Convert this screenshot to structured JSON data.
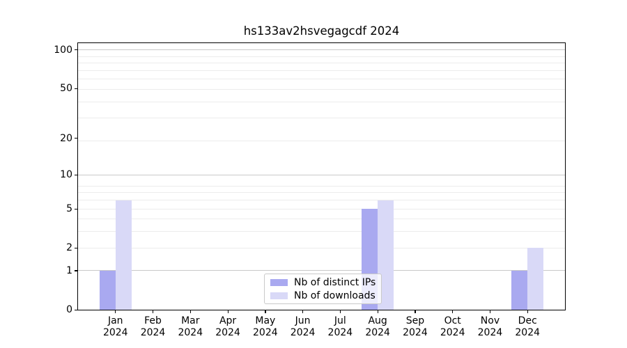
{
  "chart_data": {
    "type": "bar",
    "title": "hs133av2hsvegagcdf 2024",
    "categories": [
      "Jan",
      "Feb",
      "Mar",
      "Apr",
      "May",
      "Jun",
      "Jul",
      "Aug",
      "Sep",
      "Oct",
      "Nov",
      "Dec"
    ],
    "year_label": "2024",
    "series": [
      {
        "name": "Nb of distinct IPs",
        "color": "#a9a9f0",
        "values": [
          1,
          0,
          0,
          0,
          0,
          0,
          0,
          5,
          0,
          0,
          0,
          1
        ]
      },
      {
        "name": "Nb of downloads",
        "color": "#d9d9f7",
        "values": [
          6,
          0,
          0,
          0,
          0,
          0,
          0,
          6,
          0,
          0,
          0,
          2
        ]
      }
    ],
    "yscale": "log1p",
    "ylim": [
      0,
      113
    ],
    "yticks": [
      {
        "value": 100,
        "label": "100"
      },
      {
        "value": 50,
        "label": "50"
      },
      {
        "value": 20,
        "label": "20"
      },
      {
        "value": 10,
        "label": "10"
      },
      {
        "value": 5,
        "label": "5"
      },
      {
        "value": 2,
        "label": "2"
      },
      {
        "value": 1,
        "label": "1"
      },
      {
        "value": 0,
        "label": "0"
      }
    ],
    "gridlines": {
      "major": [
        1,
        10,
        100
      ],
      "minor": [
        2,
        3,
        4,
        5,
        6,
        7,
        8,
        19,
        29,
        39,
        49,
        59,
        69,
        79,
        89
      ],
      "major_color": "#c9c9c9",
      "minor_color": "#ececec"
    },
    "legend": {
      "position": "lower center",
      "items": [
        "Nb of distinct IPs",
        "Nb of downloads"
      ]
    },
    "xlabel": "",
    "ylabel": ""
  }
}
